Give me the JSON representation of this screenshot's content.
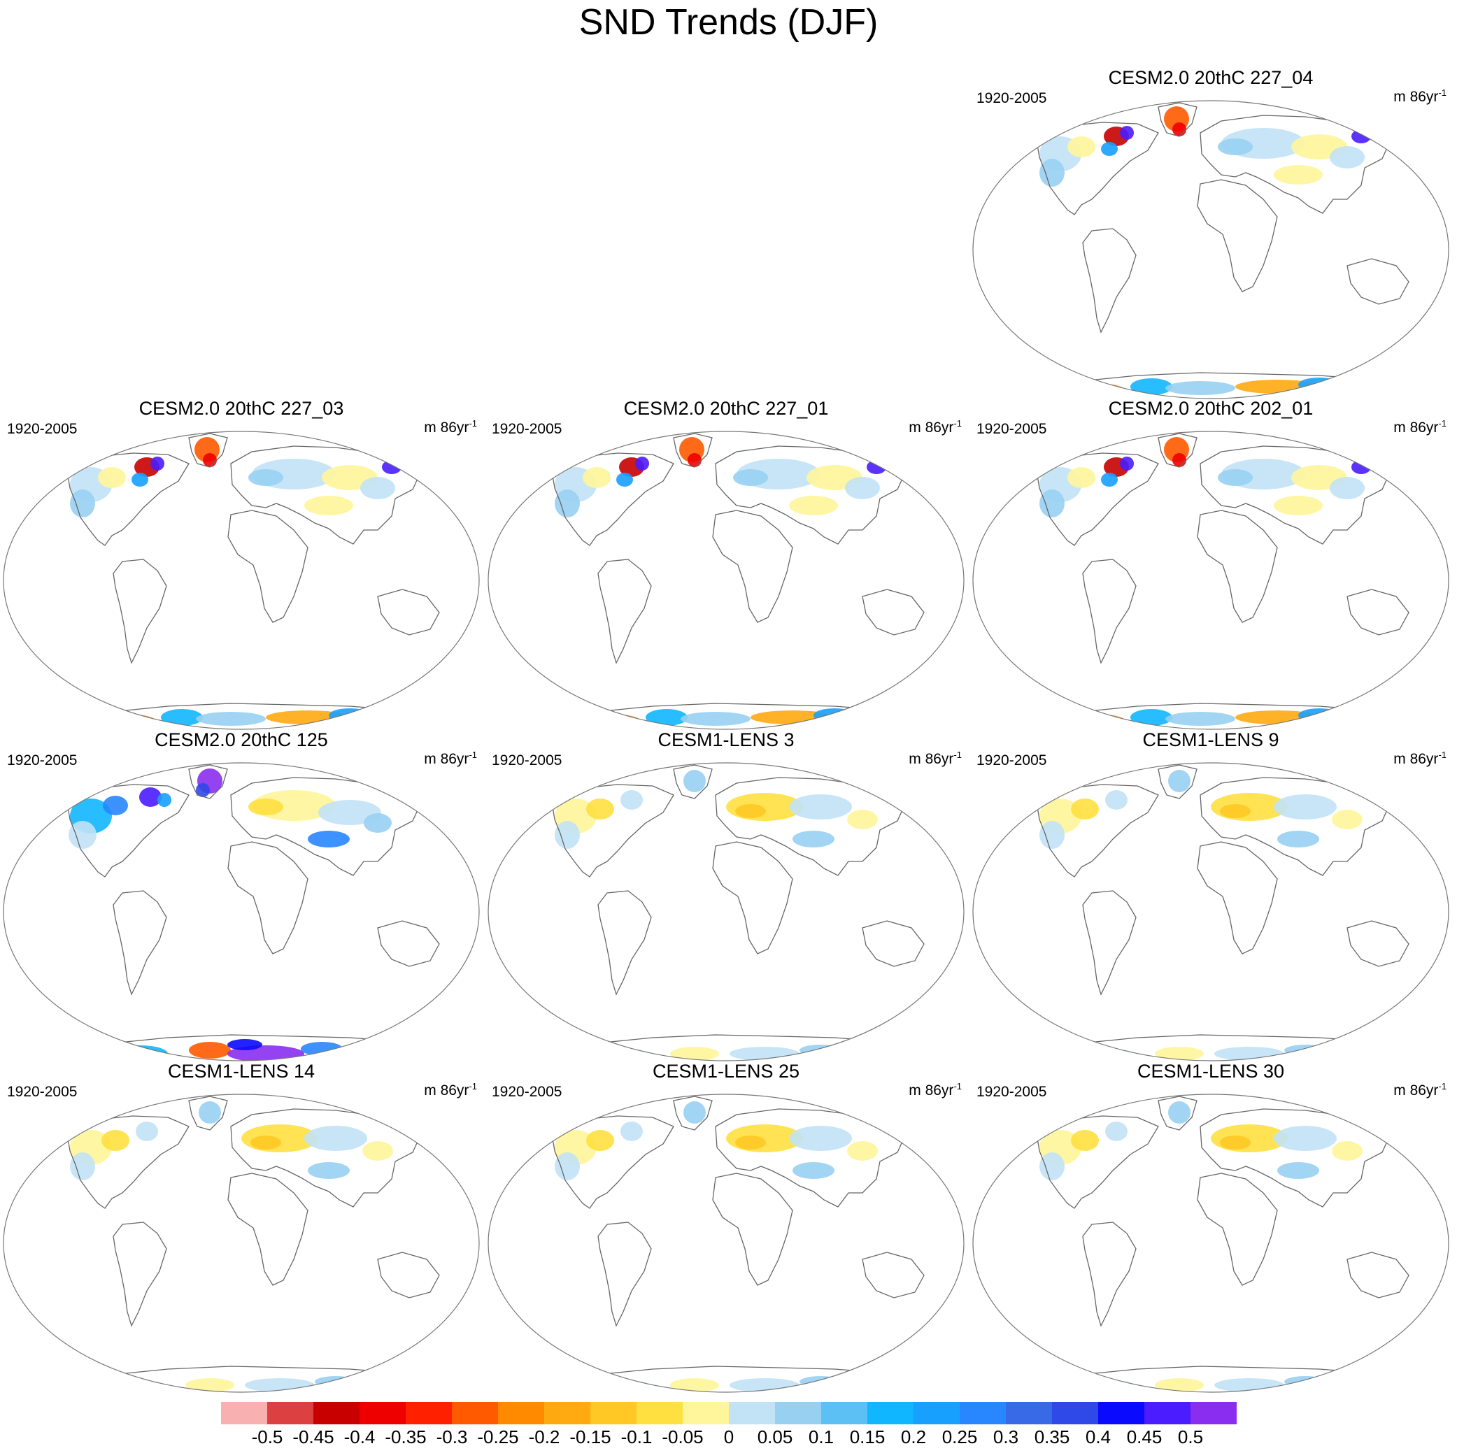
{
  "title": "SND Trends (DJF)",
  "panels": [
    {
      "title": "CESM2.0 20thC 227_04",
      "period": "1920-2005",
      "units": "m 86yr",
      "units_exp": "-1",
      "pattern": "warm-ant"
    },
    {
      "title": "CESM2.0 20thC 227_03",
      "period": "1920-2005",
      "units": "m 86yr",
      "units_exp": "-1",
      "pattern": "warm-ant"
    },
    {
      "title": "CESM2.0 20thC 227_01",
      "period": "1920-2005",
      "units": "m 86yr",
      "units_exp": "-1",
      "pattern": "warm-ant"
    },
    {
      "title": "CESM2.0 20thC 202_01",
      "period": "1920-2005",
      "units": "m 86yr",
      "units_exp": "-1",
      "pattern": "warm-ant"
    },
    {
      "title": "CESM2.0 20thC 125",
      "period": "1920-2005",
      "units": "m 86yr",
      "units_exp": "-1",
      "pattern": "purple-ant"
    },
    {
      "title": "CESM1-LENS 3",
      "period": "1920-2005",
      "units": "m 86yr",
      "units_exp": "-1",
      "pattern": "mild"
    },
    {
      "title": "CESM1-LENS 9",
      "period": "1920-2005",
      "units": "m 86yr",
      "units_exp": "-1",
      "pattern": "mild"
    },
    {
      "title": "CESM1-LENS 14",
      "period": "1920-2005",
      "units": "m 86yr",
      "units_exp": "-1",
      "pattern": "mild"
    },
    {
      "title": "CESM1-LENS 25",
      "period": "1920-2005",
      "units": "m 86yr",
      "units_exp": "-1",
      "pattern": "mild"
    },
    {
      "title": "CESM1-LENS 30",
      "period": "1920-2005",
      "units": "m 86yr",
      "units_exp": "-1",
      "pattern": "mild"
    }
  ],
  "colorbar": {
    "colors": [
      "#f9b0b0",
      "#dc4040",
      "#c80000",
      "#ee0000",
      "#ff2000",
      "#ff5a00",
      "#ff8a00",
      "#ffaa10",
      "#ffc824",
      "#ffe040",
      "#fff59a",
      "#c2e2f6",
      "#98d0f2",
      "#5cc0f5",
      "#10b6ff",
      "#18a0ff",
      "#2886ff",
      "#386ae8",
      "#2f48e8",
      "#0a0aff",
      "#4a1cff",
      "#8a2df0"
    ],
    "labels": [
      "-0.5",
      "-0.45",
      "-0.4",
      "-0.35",
      "-0.3",
      "-0.25",
      "-0.2",
      "-0.15",
      "-0.1",
      "-0.05",
      "0",
      "0.05",
      "0.1",
      "0.15",
      "0.2",
      "0.25",
      "0.3",
      "0.35",
      "0.4",
      "0.45",
      "0.5"
    ]
  }
}
